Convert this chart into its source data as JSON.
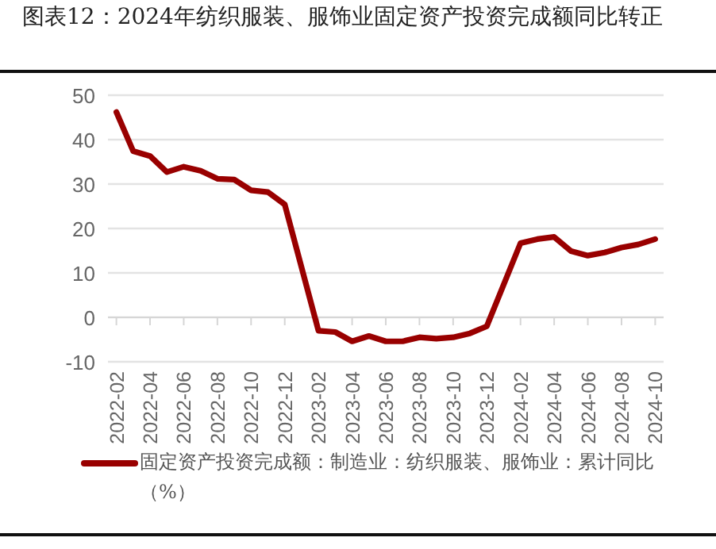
{
  "chart_data": {
    "type": "line",
    "title": "图表12：2024年纺织服装、服饰业固定资产投资完成额同比转正",
    "x": [
      "2022-02",
      "2022-03",
      "2022-04",
      "2022-05",
      "2022-06",
      "2022-07",
      "2022-08",
      "2022-09",
      "2022-10",
      "2022-11",
      "2022-12",
      "2023-02",
      "2023-03",
      "2023-04",
      "2023-05",
      "2023-06",
      "2023-07",
      "2023-08",
      "2023-09",
      "2023-10",
      "2023-11",
      "2023-12",
      "2024-02",
      "2024-03",
      "2024-04",
      "2024-05",
      "2024-06",
      "2024-07",
      "2024-08",
      "2024-09",
      "2024-10"
    ],
    "series": [
      {
        "name": "固定资产投资完成额：制造业：纺织服装、服饰业：累计同比（%）",
        "color": "#990000",
        "values": [
          46.2,
          37.4,
          36.3,
          32.7,
          33.9,
          33.0,
          31.2,
          31.0,
          28.6,
          28.2,
          25.4,
          -3.0,
          -3.3,
          -5.4,
          -4.2,
          -5.4,
          -5.4,
          -4.5,
          -4.8,
          -4.5,
          -3.6,
          -2.0,
          16.7,
          17.6,
          18.1,
          14.9,
          13.9,
          14.6,
          15.7,
          16.4,
          17.6
        ]
      }
    ],
    "xlim": [
      "2022-01-16",
      "2024-10-16"
    ],
    "xticks": [
      "2022-02",
      "2022-04",
      "2022-06",
      "2022-08",
      "2022-10",
      "2022-12",
      "2023-02",
      "2023-04",
      "2023-06",
      "2023-08",
      "2023-10",
      "2023-12",
      "2024-02",
      "2024-04",
      "2024-06",
      "2024-08",
      "2024-10"
    ],
    "ylim": [
      -10,
      50
    ],
    "yticks": [
      -10,
      0,
      10,
      20,
      30,
      40,
      50
    ],
    "grid": "y",
    "legend": "bottom"
  }
}
